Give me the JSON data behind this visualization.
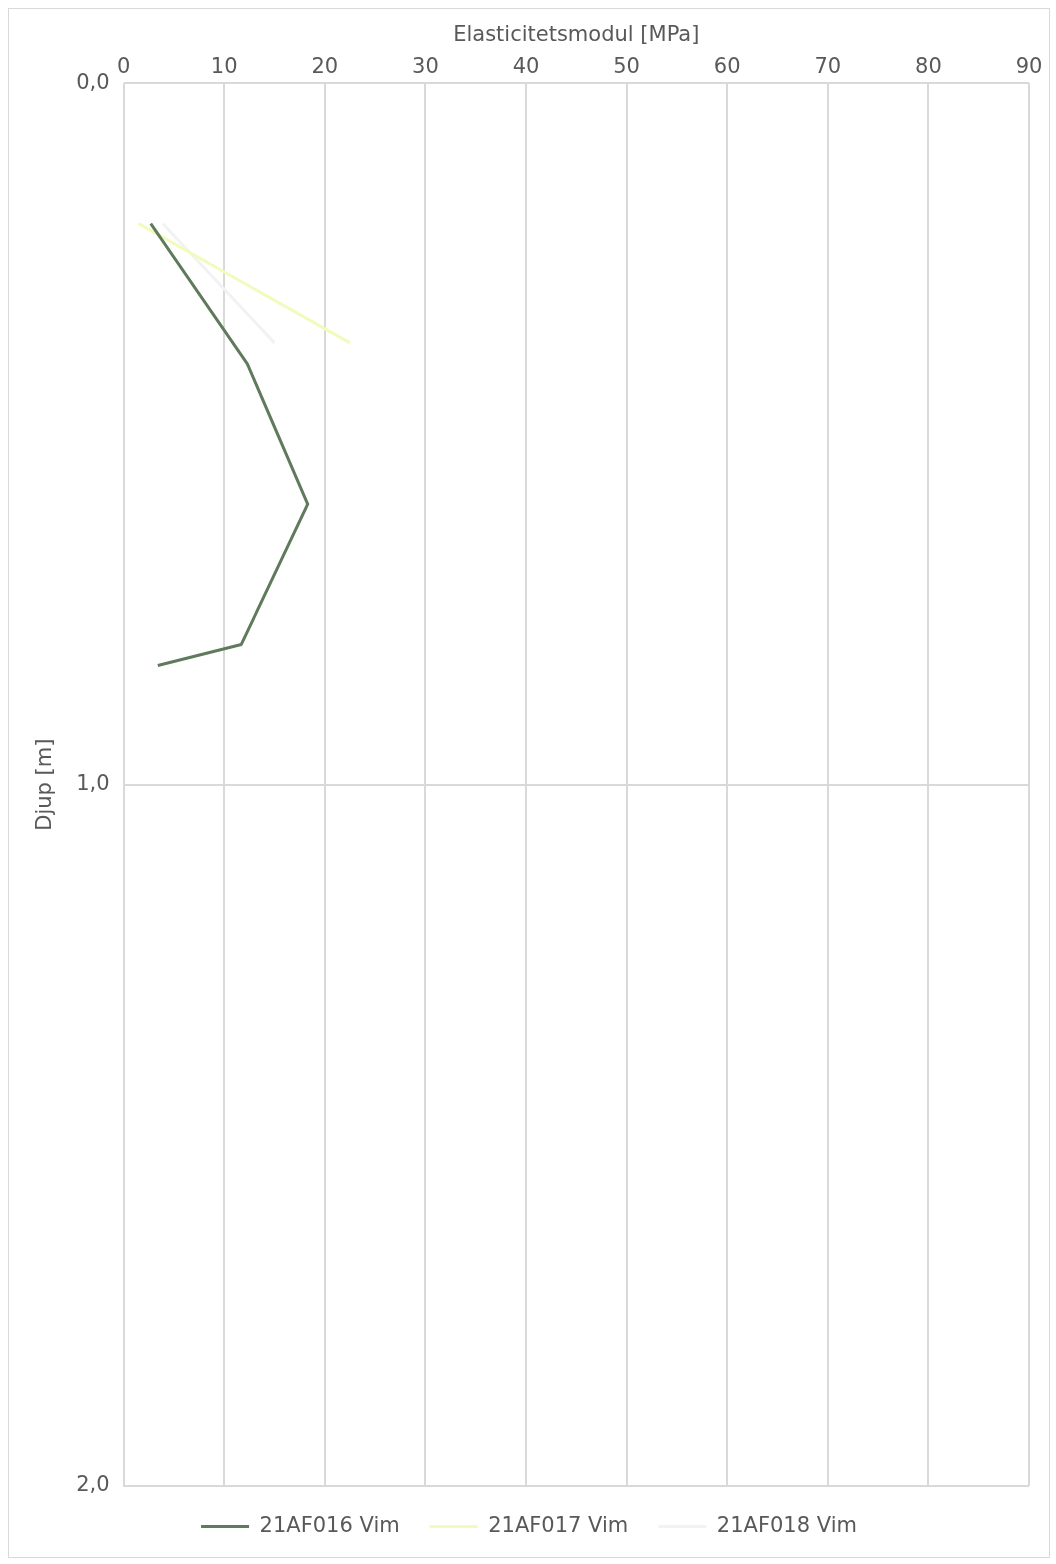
{
  "chart_data": {
    "type": "line",
    "xlabel": "Elasticitetsmodul [MPa]",
    "ylabel": "Djup [m]",
    "xlim": [
      0,
      90
    ],
    "xticks": [
      0,
      10,
      20,
      30,
      40,
      50,
      60,
      70,
      80,
      90
    ],
    "ylim": [
      2.0,
      0.0
    ],
    "yticks": [
      {
        "value": 0,
        "label": "0,0"
      },
      {
        "value": 1,
        "label": "1,0"
      },
      {
        "value": 2,
        "label": "2,0"
      }
    ],
    "grid": true,
    "legend": "bottom",
    "marker": "none",
    "line_style": "solid",
    "series": [
      {
        "name": "21AF016 Vim",
        "color": "#5f7a5c",
        "x": [
          2.7,
          12.3,
          18.3,
          11.7,
          3.4
        ],
        "values": [
          0.2,
          0.4,
          0.6,
          0.8,
          0.83
        ]
      },
      {
        "name": "21AF017 Vim",
        "color": "#f0fcbc",
        "x": [
          1.5,
          22.5
        ],
        "values": [
          0.2,
          0.37
        ]
      },
      {
        "name": "21AF018 Vim",
        "color": "#f2f2f2",
        "x": [
          3.9,
          15.0
        ],
        "values": [
          0.2,
          0.37
        ]
      }
    ]
  }
}
